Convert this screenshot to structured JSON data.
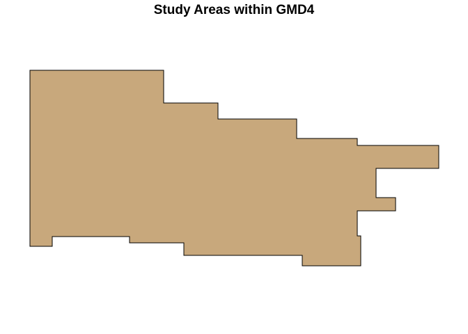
{
  "title": "Study Areas within GMD4",
  "map": {
    "region_fill": "#C8A87C",
    "region_stroke": "#000000",
    "background": "#FFFFFF"
  }
}
